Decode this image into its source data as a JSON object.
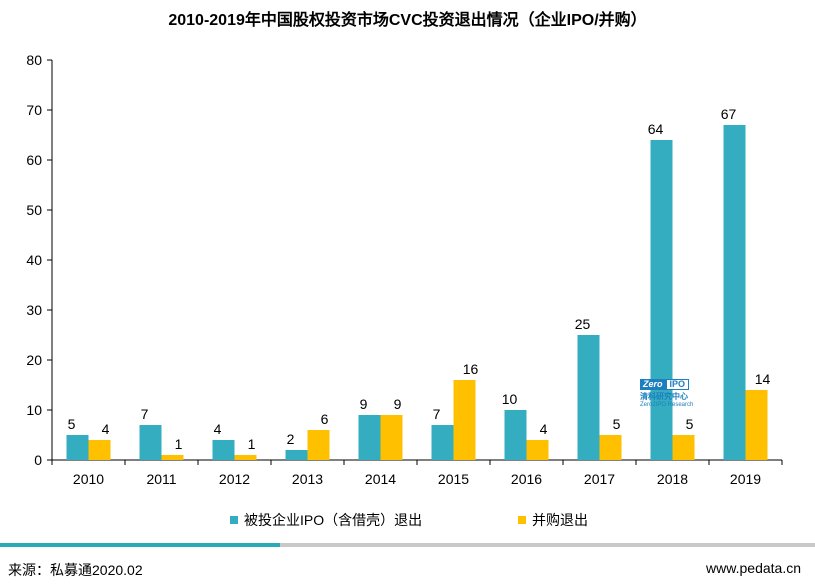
{
  "chart_data": {
    "type": "bar",
    "title": "2010-2019年中国股权投资市场CVC投资退出情况（企业IPO/并购）",
    "categories": [
      "2010",
      "2011",
      "2012",
      "2013",
      "2014",
      "2015",
      "2016",
      "2017",
      "2018",
      "2019"
    ],
    "series": [
      {
        "name": "被投企业IPO（含借壳）退出",
        "color": "#33adbf",
        "values": [
          5,
          7,
          4,
          2,
          9,
          7,
          10,
          25,
          64,
          67
        ]
      },
      {
        "name": "并购退出",
        "color": "#ffc000",
        "values": [
          4,
          1,
          1,
          6,
          9,
          16,
          4,
          5,
          5,
          14
        ]
      }
    ],
    "ylim": [
      0,
      80
    ],
    "yticks": [
      0,
      10,
      20,
      30,
      40,
      50,
      60,
      70,
      80
    ],
    "xlabel": "",
    "ylabel": "",
    "legend_position": "bottom",
    "grid": false
  },
  "footer": {
    "source": "来源：私募通2020.02",
    "website": "www.pedata.cn"
  },
  "watermark": {
    "logo_left": "Zero",
    "logo_right": "IPO",
    "line1": "清科研究中心",
    "line2": "Zero2IPO Research"
  },
  "colors": {
    "accent_bar": "#2aa9b8",
    "footer_gray": "#c9c9c9"
  }
}
